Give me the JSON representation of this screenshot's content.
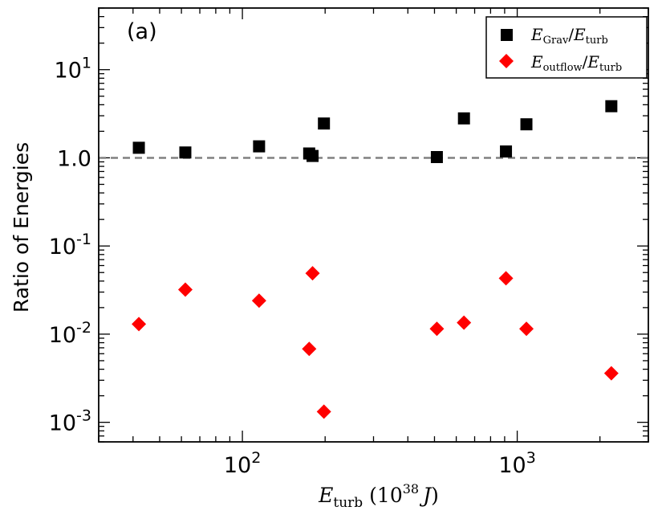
{
  "chart_data": {
    "type": "scatter",
    "panel_label": "(a)",
    "ylabel": "Ratio of Energies",
    "xlabel": {
      "symbol": "E",
      "subscript": "turb",
      "units_prefix": "(10",
      "units_exponent": "38",
      "units_symbol": "J",
      "units_suffix": ")"
    },
    "x_scale": "log",
    "y_scale": "log",
    "xlim": [
      30,
      3000
    ],
    "ylim": [
      0.0006,
      50
    ],
    "x_ticks": [
      {
        "value": 100,
        "base": "10",
        "exp": "2"
      },
      {
        "value": 1000,
        "base": "10",
        "exp": "3"
      }
    ],
    "y_ticks": [
      {
        "value": 0.001,
        "base": "10",
        "exp": "-3"
      },
      {
        "value": 0.01,
        "base": "10",
        "exp": "-2"
      },
      {
        "value": 0.1,
        "base": "10",
        "exp": "-1"
      },
      {
        "value": 1,
        "label": "10",
        "exp": "0",
        "plain": "1.0"
      },
      {
        "value": 10,
        "base": "10",
        "exp": "1"
      }
    ],
    "y_tick_labels_display": [
      "10-3",
      "10-2",
      "10-1",
      "1.0",
      "101"
    ],
    "reference_line": {
      "y": 1.0,
      "style": "dashed",
      "color": "#808080"
    },
    "legend_position": "top-right",
    "series": [
      {
        "name": "E_Grav/E_turb",
        "legend": {
          "num": "E",
          "num_sub": "Grav",
          "den": "E",
          "den_sub": "turb"
        },
        "marker": "square",
        "color": "#000000",
        "points": [
          {
            "x": 42,
            "y": 1.3
          },
          {
            "x": 62,
            "y": 1.15
          },
          {
            "x": 115,
            "y": 1.35
          },
          {
            "x": 175,
            "y": 1.12
          },
          {
            "x": 180,
            "y": 1.05
          },
          {
            "x": 198,
            "y": 2.45
          },
          {
            "x": 510,
            "y": 1.02
          },
          {
            "x": 640,
            "y": 2.8
          },
          {
            "x": 910,
            "y": 1.18
          },
          {
            "x": 1080,
            "y": 2.4
          },
          {
            "x": 2200,
            "y": 3.85
          }
        ]
      },
      {
        "name": "E_outflow/E_turb",
        "legend": {
          "num": "E",
          "num_sub": "outflow",
          "den": "E",
          "den_sub": "turb"
        },
        "marker": "diamond",
        "color": "#ff0000",
        "points": [
          {
            "x": 42,
            "y": 0.013
          },
          {
            "x": 62,
            "y": 0.032
          },
          {
            "x": 115,
            "y": 0.024
          },
          {
            "x": 175,
            "y": 0.0068
          },
          {
            "x": 180,
            "y": 0.049
          },
          {
            "x": 198,
            "y": 0.00132
          },
          {
            "x": 510,
            "y": 0.0115
          },
          {
            "x": 640,
            "y": 0.0135
          },
          {
            "x": 910,
            "y": 0.043
          },
          {
            "x": 1080,
            "y": 0.0115
          },
          {
            "x": 2200,
            "y": 0.0036
          }
        ]
      }
    ]
  }
}
